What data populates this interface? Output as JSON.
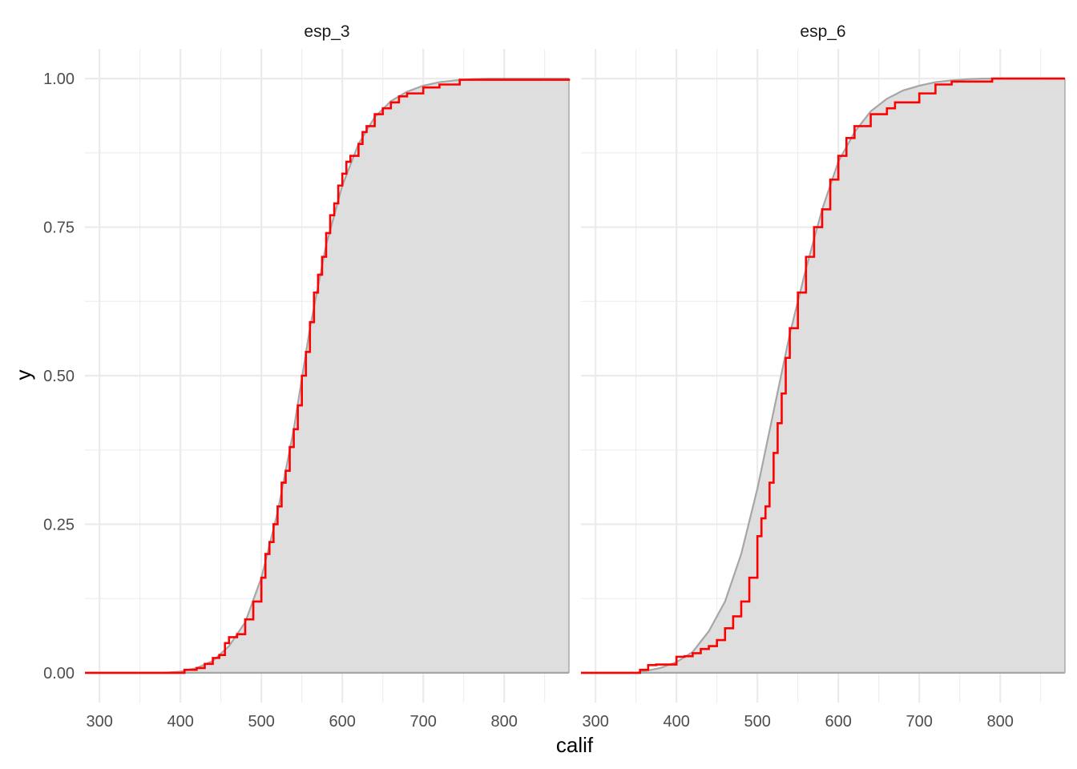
{
  "chart_data": {
    "type": "line",
    "xlabel": "calif",
    "ylabel": "y",
    "xlim": [
      282,
      880
    ],
    "ylim": [
      -0.05,
      1.05
    ],
    "x_ticks": [
      300,
      400,
      500,
      600,
      700,
      800
    ],
    "y_ticks": [
      0,
      0.25,
      0.5,
      0.75,
      1
    ],
    "x_tick_labels": [
      "300",
      "400",
      "500",
      "600",
      "700",
      "800"
    ],
    "y_tick_labels": [
      "0.00",
      "0.25",
      "0.50",
      "0.75",
      "1.00"
    ],
    "grid": true,
    "colors": {
      "ecdf": "#ff0000",
      "fitted_line": "#a6a6a6",
      "fitted_fill": "#dedede",
      "grid": "#ebebeb"
    },
    "panels": [
      {
        "strip": "esp_3",
        "ecdf": [
          [
            282,
            0
          ],
          [
            403,
            0
          ],
          [
            405,
            0.005
          ],
          [
            420,
            0.008
          ],
          [
            430,
            0.015
          ],
          [
            440,
            0.025
          ],
          [
            448,
            0.03
          ],
          [
            455,
            0.05
          ],
          [
            460,
            0.06
          ],
          [
            470,
            0.065
          ],
          [
            480,
            0.09
          ],
          [
            490,
            0.12
          ],
          [
            500,
            0.16
          ],
          [
            505,
            0.2
          ],
          [
            510,
            0.22
          ],
          [
            515,
            0.25
          ],
          [
            520,
            0.28
          ],
          [
            525,
            0.32
          ],
          [
            530,
            0.34
          ],
          [
            535,
            0.38
          ],
          [
            540,
            0.41
          ],
          [
            545,
            0.45
          ],
          [
            550,
            0.5
          ],
          [
            555,
            0.54
          ],
          [
            560,
            0.59
          ],
          [
            565,
            0.64
          ],
          [
            570,
            0.67
          ],
          [
            575,
            0.7
          ],
          [
            580,
            0.74
          ],
          [
            585,
            0.77
          ],
          [
            590,
            0.79
          ],
          [
            595,
            0.82
          ],
          [
            600,
            0.84
          ],
          [
            605,
            0.86
          ],
          [
            610,
            0.87
          ],
          [
            620,
            0.89
          ],
          [
            625,
            0.91
          ],
          [
            630,
            0.92
          ],
          [
            640,
            0.94
          ],
          [
            650,
            0.95
          ],
          [
            660,
            0.96
          ],
          [
            670,
            0.97
          ],
          [
            680,
            0.975
          ],
          [
            700,
            0.985
          ],
          [
            720,
            0.99
          ],
          [
            745,
            0.998
          ],
          [
            880,
            1
          ]
        ],
        "fitted": [
          [
            380,
            0
          ],
          [
            400,
            0.002
          ],
          [
            420,
            0.008
          ],
          [
            440,
            0.02
          ],
          [
            460,
            0.045
          ],
          [
            480,
            0.085
          ],
          [
            500,
            0.16
          ],
          [
            520,
            0.27
          ],
          [
            540,
            0.41
          ],
          [
            560,
            0.58
          ],
          [
            580,
            0.72
          ],
          [
            600,
            0.82
          ],
          [
            620,
            0.89
          ],
          [
            640,
            0.935
          ],
          [
            660,
            0.962
          ],
          [
            680,
            0.978
          ],
          [
            700,
            0.988
          ],
          [
            720,
            0.994
          ],
          [
            740,
            0.997
          ],
          [
            760,
            0.999
          ],
          [
            780,
            1
          ],
          [
            880,
            1
          ]
        ]
      },
      {
        "strip": "esp_6",
        "ecdf": [
          [
            282,
            0
          ],
          [
            350,
            0
          ],
          [
            355,
            0.005
          ],
          [
            365,
            0.013
          ],
          [
            375,
            0.014
          ],
          [
            400,
            0.027
          ],
          [
            410,
            0.028
          ],
          [
            420,
            0.033
          ],
          [
            430,
            0.04
          ],
          [
            440,
            0.045
          ],
          [
            450,
            0.055
          ],
          [
            460,
            0.075
          ],
          [
            470,
            0.095
          ],
          [
            480,
            0.12
          ],
          [
            490,
            0.16
          ],
          [
            500,
            0.23
          ],
          [
            505,
            0.26
          ],
          [
            510,
            0.28
          ],
          [
            515,
            0.32
          ],
          [
            520,
            0.37
          ],
          [
            525,
            0.42
          ],
          [
            530,
            0.47
          ],
          [
            535,
            0.53
          ],
          [
            540,
            0.58
          ],
          [
            550,
            0.64
          ],
          [
            560,
            0.7
          ],
          [
            570,
            0.75
          ],
          [
            580,
            0.78
          ],
          [
            590,
            0.83
          ],
          [
            600,
            0.87
          ],
          [
            610,
            0.9
          ],
          [
            620,
            0.92
          ],
          [
            640,
            0.94
          ],
          [
            660,
            0.95
          ],
          [
            670,
            0.96
          ],
          [
            700,
            0.975
          ],
          [
            720,
            0.99
          ],
          [
            740,
            0.995
          ],
          [
            790,
            1
          ],
          [
            880,
            1
          ]
        ],
        "fitted": [
          [
            350,
            0
          ],
          [
            380,
            0.008
          ],
          [
            400,
            0.018
          ],
          [
            420,
            0.035
          ],
          [
            440,
            0.07
          ],
          [
            460,
            0.12
          ],
          [
            480,
            0.2
          ],
          [
            500,
            0.31
          ],
          [
            520,
            0.44
          ],
          [
            540,
            0.57
          ],
          [
            560,
            0.68
          ],
          [
            580,
            0.78
          ],
          [
            600,
            0.86
          ],
          [
            620,
            0.91
          ],
          [
            640,
            0.945
          ],
          [
            660,
            0.966
          ],
          [
            680,
            0.98
          ],
          [
            700,
            0.988
          ],
          [
            720,
            0.994
          ],
          [
            740,
            0.997
          ],
          [
            760,
            0.999
          ],
          [
            780,
            1
          ],
          [
            880,
            1
          ]
        ]
      }
    ]
  }
}
